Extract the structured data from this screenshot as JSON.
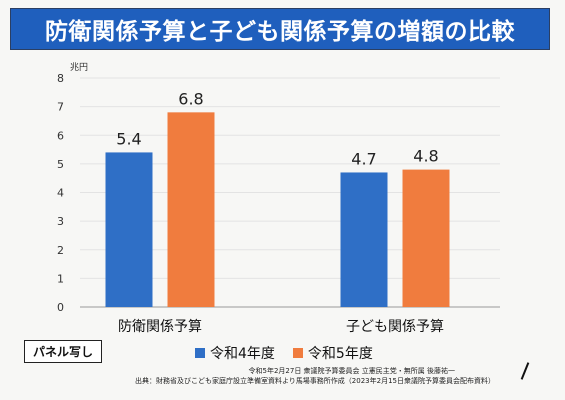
{
  "title": "防衛関係予算と子ども関係予算の増額の比較",
  "panel_tag": "パネル写し",
  "footnote_1": "令和5年2月27日 衆議院予算委員会 立憲民主党・無所属 後藤祐一",
  "footnote_2": "出典：財務省及びこども家庭庁設立準備室資料より馬場事務所作成（2023年2月15日衆議院予算委員会配布資料）",
  "colors": {
    "title_bg": "#1f5fbd",
    "series_1": "#2f6fc6",
    "series_2": "#f07c3e"
  },
  "chart_data": {
    "type": "bar",
    "unit_label": "兆円",
    "categories": [
      "防衛関係予算",
      "子ども関係予算"
    ],
    "series": [
      {
        "name": "令和4年度",
        "values": [
          5.4,
          4.7
        ],
        "color": "#2f6fc6"
      },
      {
        "name": "令和5年度",
        "values": [
          6.8,
          4.8
        ],
        "color": "#f07c3e"
      }
    ],
    "ylim": [
      0,
      8
    ],
    "yticks": [
      0,
      1,
      2,
      3,
      4,
      5,
      6,
      7,
      8
    ],
    "grid": true,
    "legend_position": "bottom"
  }
}
